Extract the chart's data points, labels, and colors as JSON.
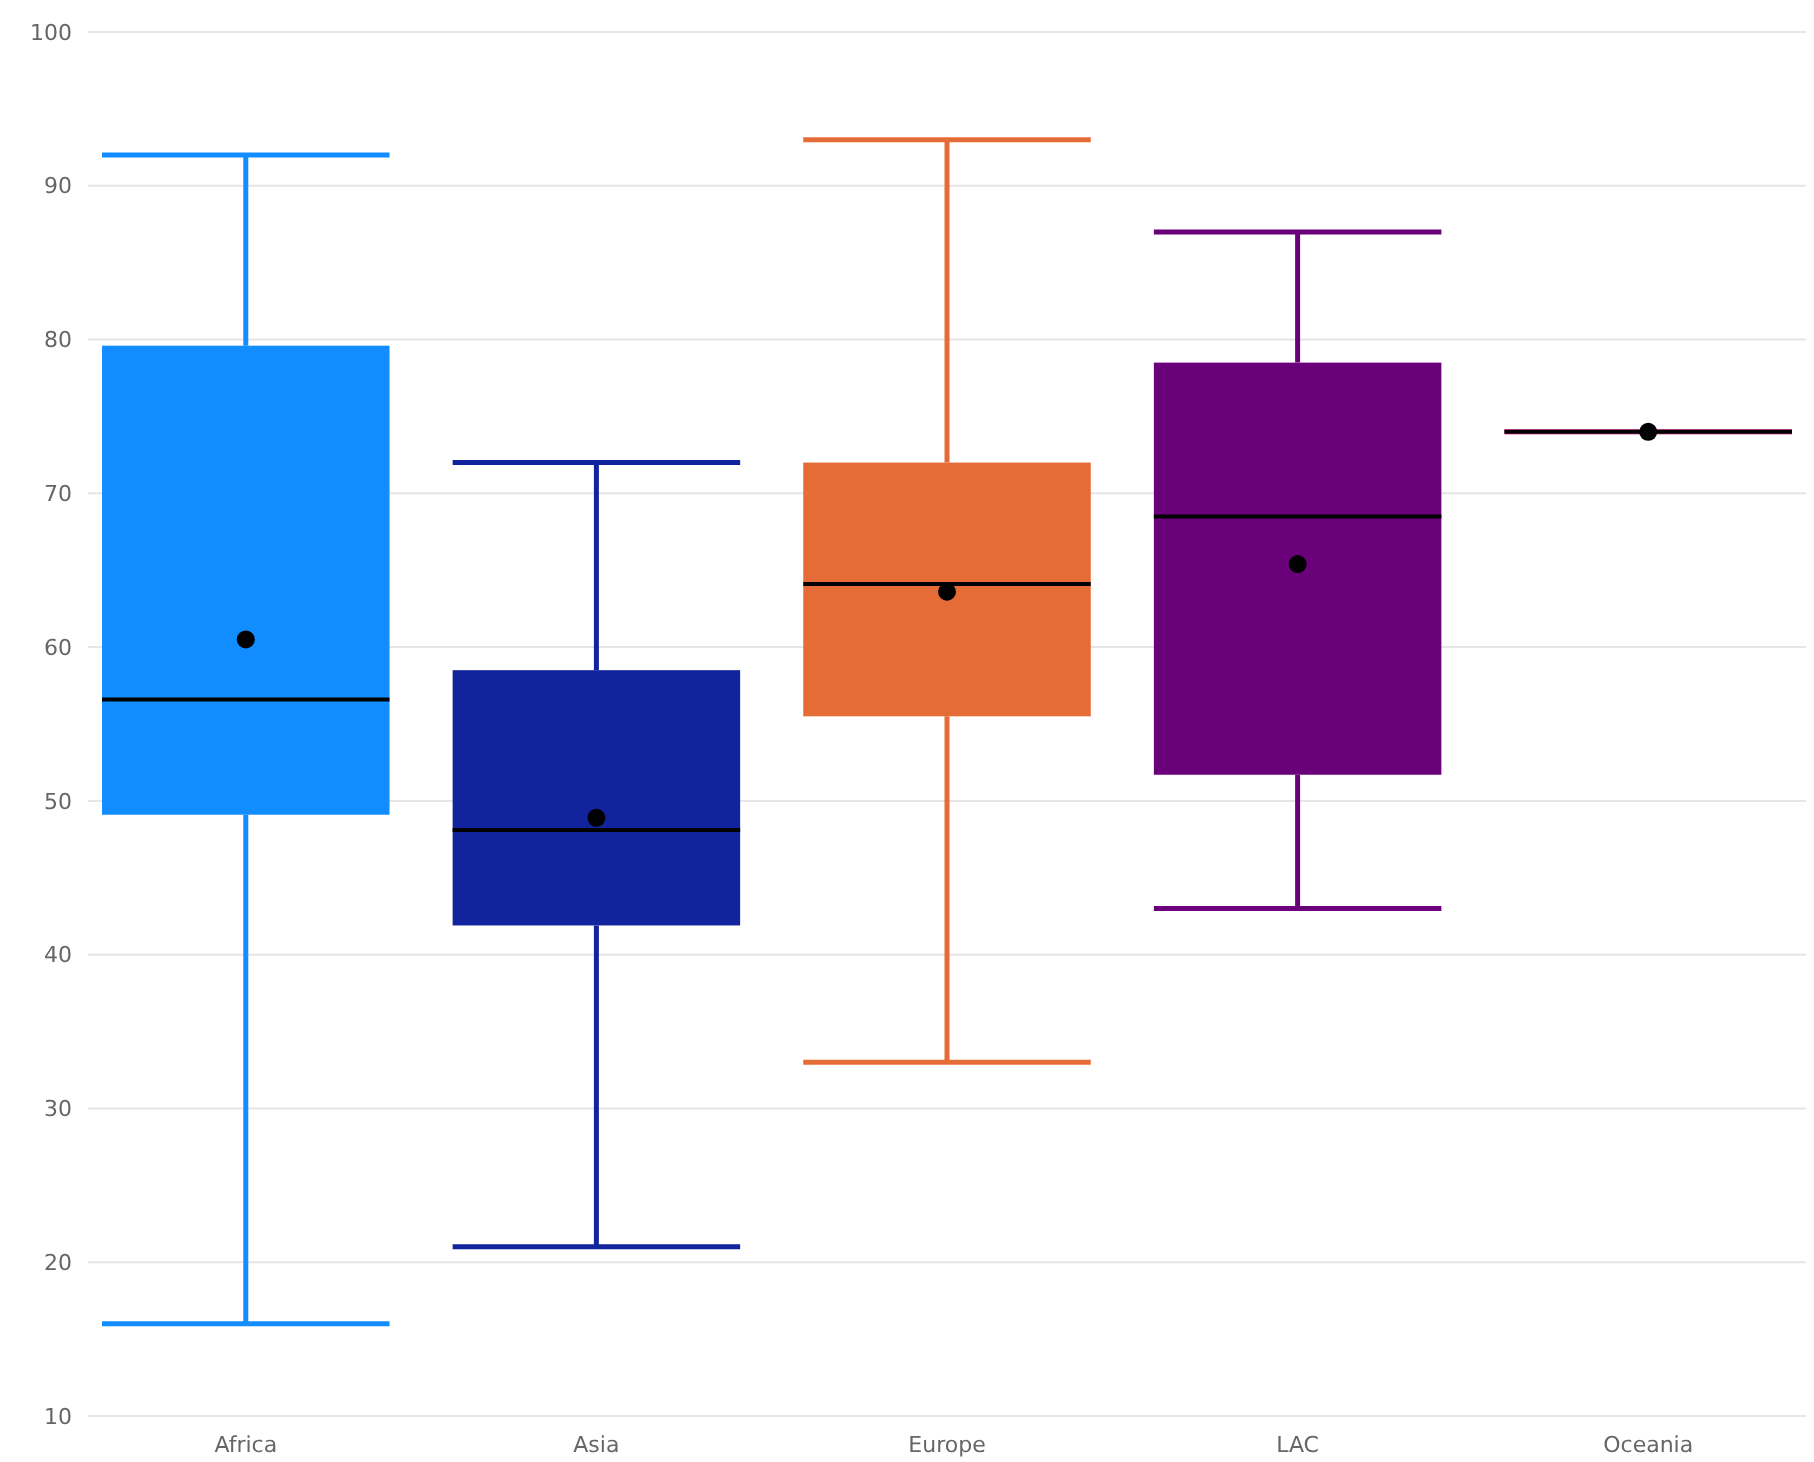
{
  "chart_data": {
    "type": "box",
    "categories": [
      "Africa",
      "Asia",
      "Europe",
      "LAC",
      "Oceania"
    ],
    "colors": [
      "#118dff",
      "#12239e",
      "#e66c37",
      "#6b007b",
      "#e044a7"
    ],
    "boxes": [
      {
        "low": 16,
        "q1": 49.1,
        "median": 56.6,
        "q3": 79.6,
        "high": 92,
        "mean": 60.5
      },
      {
        "low": 21,
        "q1": 41.9,
        "median": 48.1,
        "q3": 58.5,
        "high": 72,
        "mean": 48.9
      },
      {
        "low": 33,
        "q1": 55.5,
        "median": 64.1,
        "q3": 72,
        "high": 93,
        "mean": 63.6
      },
      {
        "low": 43,
        "q1": 51.7,
        "median": 68.5,
        "q3": 78.5,
        "high": 87,
        "mean": 65.4
      },
      {
        "low": 74,
        "q1": 74,
        "median": 74,
        "q3": 74,
        "high": 74,
        "mean": 74
      }
    ],
    "ylim": [
      10,
      100
    ],
    "yticks": [
      10,
      20,
      30,
      40,
      50,
      60,
      70,
      80,
      90,
      100
    ],
    "grid": "y"
  }
}
